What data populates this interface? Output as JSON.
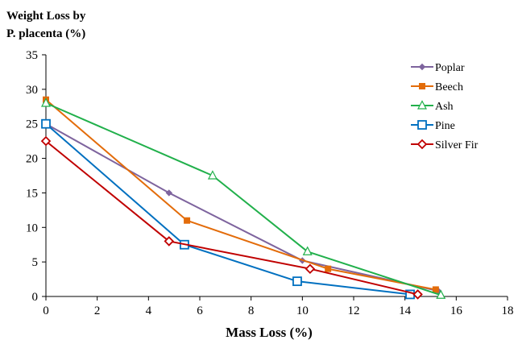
{
  "chart_data": {
    "type": "scatter",
    "title": "",
    "ylabel_lines": [
      "Weight Loss by",
      "P. placenta (%)"
    ],
    "xlabel": "Mass Loss (%)",
    "xlim": [
      0,
      18
    ],
    "ylim": [
      0,
      35
    ],
    "xticks": [
      "0",
      "2",
      "4",
      "6",
      "8",
      "10",
      "12",
      "14",
      "16",
      "18"
    ],
    "yticks": [
      "0",
      "5",
      "10",
      "15",
      "20",
      "25",
      "30",
      "35"
    ],
    "grid": false,
    "legend_position": "top-right",
    "series": [
      {
        "name": "Poplar",
        "color": "#7E649E",
        "marker": "diamond-filled",
        "points": [
          [
            0,
            25.0
          ],
          [
            4.8,
            15.0
          ],
          [
            10.0,
            5.2
          ],
          [
            15.3,
            0.8
          ]
        ]
      },
      {
        "name": "Beech",
        "color": "#E36C0A",
        "marker": "square-filled",
        "points": [
          [
            0,
            28.5
          ],
          [
            5.5,
            11.0
          ],
          [
            11.0,
            4.0
          ],
          [
            15.2,
            1.0
          ]
        ]
      },
      {
        "name": "Ash",
        "color": "#21B04B",
        "marker": "triangle-open",
        "points": [
          [
            0,
            28.0
          ],
          [
            6.5,
            17.5
          ],
          [
            10.2,
            6.5
          ],
          [
            15.4,
            0.2
          ]
        ]
      },
      {
        "name": "Pine",
        "color": "#0070C0",
        "marker": "square-open",
        "points": [
          [
            0,
            25.0
          ],
          [
            5.4,
            7.5
          ],
          [
            9.8,
            2.2
          ],
          [
            14.2,
            0.3
          ]
        ]
      },
      {
        "name": "Silver Fir",
        "color": "#C00000",
        "marker": "diamond-open",
        "points": [
          [
            0,
            22.5
          ],
          [
            4.8,
            8.0
          ],
          [
            10.3,
            4.0
          ],
          [
            14.5,
            0.3
          ]
        ]
      }
    ]
  }
}
